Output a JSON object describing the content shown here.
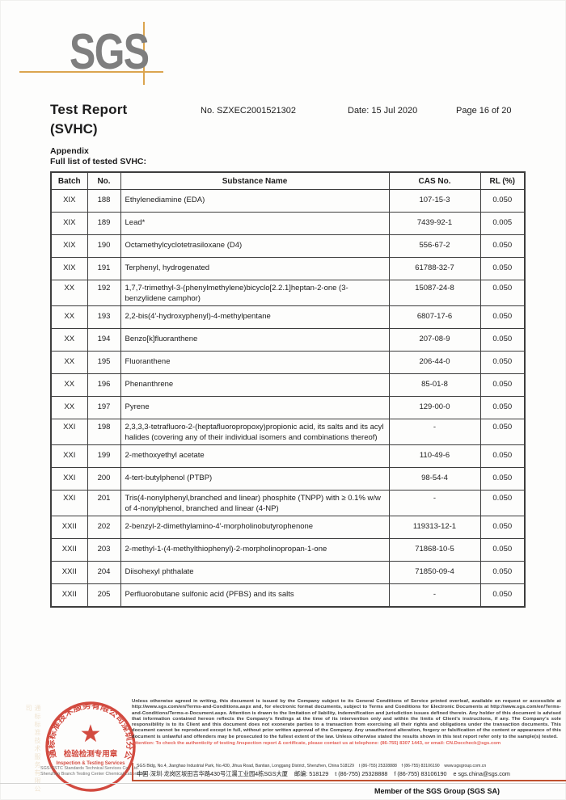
{
  "logo": {
    "text": "SGS"
  },
  "header": {
    "title_line1": "Test Report",
    "title_line2": "(SVHC)",
    "report_no": "No. SZXEC2001521302",
    "date": "Date: 15 Jul 2020",
    "page_info": "Page 16 of 20"
  },
  "appendix": {
    "label": "Appendix",
    "subtitle": "Full list of tested SVHC:"
  },
  "table": {
    "headers": [
      "Batch",
      "No.",
      "Substance Name",
      "CAS No.",
      "RL (%)"
    ],
    "rows": [
      [
        "XIX",
        "188",
        "Ethylenediamine (EDA)",
        "107-15-3",
        "0.050"
      ],
      [
        "XIX",
        "189",
        "Lead*",
        "7439-92-1",
        "0.005"
      ],
      [
        "XIX",
        "190",
        "Octamethylcyclotetrasiloxane (D4)",
        "556-67-2",
        "0.050"
      ],
      [
        "XIX",
        "191",
        "Terphenyl, hydrogenated",
        "61788-32-7",
        "0.050"
      ],
      [
        "XX",
        "192",
        "1,7,7-trimethyl-3-(phenylmethylene)bicyclo[2.2.1]heptan-2-one (3-benzylidene camphor)",
        "15087-24-8",
        "0.050"
      ],
      [
        "XX",
        "193",
        "2,2-bis(4'-hydroxyphenyl)-4-methylpentane",
        "6807-17-6",
        "0.050"
      ],
      [
        "XX",
        "194",
        "Benzo[k]fluoranthene",
        "207-08-9",
        "0.050"
      ],
      [
        "XX",
        "195",
        "Fluoranthene",
        "206-44-0",
        "0.050"
      ],
      [
        "XX",
        "196",
        "Phenanthrene",
        "85-01-8",
        "0.050"
      ],
      [
        "XX",
        "197",
        "Pyrene",
        "129-00-0",
        "0.050"
      ],
      [
        "XXI",
        "198",
        "2,3,3,3-tetrafluoro-2-(heptafluoropropoxy)propionic acid, its salts and its acyl halides (covering any of their individual isomers and combinations thereof)",
        "-",
        "0.050"
      ],
      [
        "XXI",
        "199",
        "2-methoxyethyl acetate",
        "110-49-6",
        "0.050"
      ],
      [
        "XXI",
        "200",
        "4-tert-butylphenol (PTBP)",
        "98-54-4",
        "0.050"
      ],
      [
        "XXI",
        "201",
        "Tris(4-nonylphenyl,branched and linear) phosphite (TNPP) with ≥ 0.1% w/w of 4-nonylphenol, branched and linear (4-NP)",
        "-",
        "0.050"
      ],
      [
        "XXII",
        "202",
        "2-benzyl-2-dimethylamino-4'-morpholinobutyrophenone",
        "119313-12-1",
        "0.050"
      ],
      [
        "XXII",
        "203",
        "2-methyl-1-(4-methylthiophenyl)-2-morpholinopropan-1-one",
        "71868-10-5",
        "0.050"
      ],
      [
        "XXII",
        "204",
        "Diisohexyl phthalate",
        "71850-09-4",
        "0.050"
      ],
      [
        "XXII",
        "205",
        "Perfluorobutane sulfonic acid (PFBS) and its salts",
        "-",
        "0.050"
      ]
    ]
  },
  "footer": {
    "disclaimer": "Unless otherwise agreed in writing, this document is issued by the Company subject to its General Conditions of Service printed overleaf, available on request or accessible at http://www.sgs.com/en/Terms-and-Conditions.aspx and, for electronic format documents, subject to Terms and Conditions for Electronic Documents at http://www.sgs.com/en/Terms-and-Conditions/Terms-e-Document.aspx. Attention is drawn to the limitation of liability, indemnification and jurisdiction issues defined therein. Any holder of this document is advised that information contained hereon reflects the Company's findings at the time of its intervention only and within the limits of Client's instructions, if any. The Company's sole responsibility is to its Client and this document does not exonerate parties to a transaction from exercising all their rights and obligations under the transaction documents. This document cannot be reproduced except in full, without prior written approval of the Company. Any unauthorized alteration, forgery or falsification of the content or appearance of this document is unlawful and offenders may be prosecuted to the fullest extent of the law. Unless otherwise stated the results shown in this test report refer only to the sample(s) tested.",
    "attention": "Attention: To check the authenticity of testing /inspection report & certificate, please contact us at telephone: (86-755) 8307 1443, or email: CN.Doccheck@sgs.com",
    "address_en": "SGS Bldg, No.4, Jianghao Industrial Park, No.430, Jihua Road, Bantian, Longgang District, Shenzhen, China 518129    t (86-755) 25328888    f (86-755) 83106190    www.sgsgroup.com.cn",
    "address_cn": "中国·深圳·龙岗区坂田吉华路430号江灟工业园4栋SGS大厦    邮编: 518129    t (86-755) 25328888    f (86-755) 83106190    e sgs.china@sgs.com",
    "company_line1": "SGS-CSTC Standards Technical Services Co., Ltd.",
    "company_line2": "Shenzhen Branch Testing Center Chemical Laboratory",
    "member": "Member of the SGS Group (SGS SA)",
    "stamp": {
      "arc_text": "通标标准技术服务有限公司深圳分公司",
      "line1": "检验检测专用章",
      "line2": "Inspection & Testing Services",
      "color": "#cf3b30"
    },
    "accent_line_color": "#c0512f"
  }
}
